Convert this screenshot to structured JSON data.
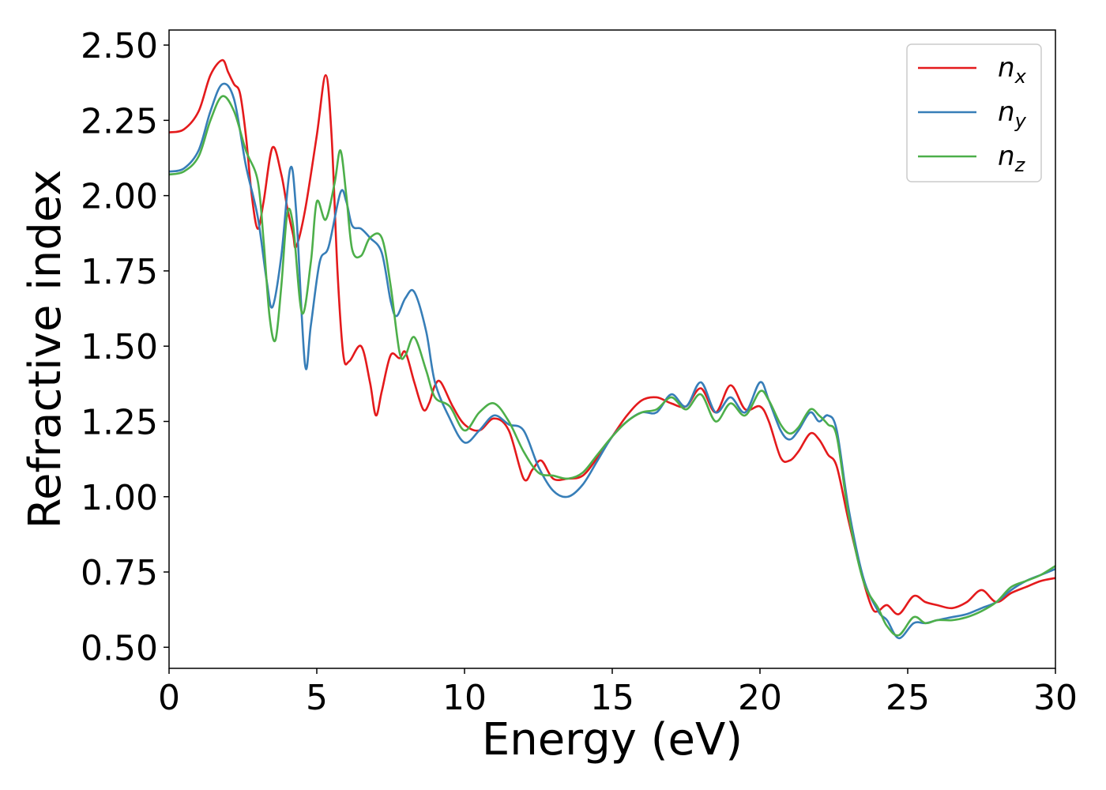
{
  "chart_data": {
    "type": "line",
    "title": "",
    "xlabel": "Energy (eV)",
    "ylabel": "Refractive index",
    "xlim": [
      0,
      30
    ],
    "ylim": [
      0.43,
      2.55
    ],
    "xticks": [
      0,
      5,
      10,
      15,
      20,
      25,
      30
    ],
    "xtick_labels": [
      "0",
      "5",
      "10",
      "15",
      "20",
      "25",
      "30"
    ],
    "yticks": [
      0.5,
      0.75,
      1.0,
      1.25,
      1.5,
      1.75,
      2.0,
      2.25,
      2.5
    ],
    "ytick_labels": [
      "0.50",
      "0.75",
      "1.00",
      "1.25",
      "1.50",
      "1.75",
      "2.00",
      "2.25",
      "2.50"
    ],
    "grid": false,
    "legend_position": "top-right",
    "series": [
      {
        "name": "n_x",
        "label_base": "n",
        "label_sub": "x",
        "color": "#e41a1c",
        "points": [
          [
            0,
            2.21
          ],
          [
            0.5,
            2.22
          ],
          [
            1.0,
            2.28
          ],
          [
            1.4,
            2.4
          ],
          [
            1.8,
            2.45
          ],
          [
            2.0,
            2.41
          ],
          [
            2.2,
            2.37
          ],
          [
            2.4,
            2.34
          ],
          [
            2.6,
            2.2
          ],
          [
            2.8,
            2.0
          ],
          [
            3.0,
            1.89
          ],
          [
            3.2,
            1.98
          ],
          [
            3.5,
            2.16
          ],
          [
            3.8,
            2.07
          ],
          [
            4.0,
            1.96
          ],
          [
            4.2,
            1.87
          ],
          [
            4.3,
            1.83
          ],
          [
            4.6,
            1.95
          ],
          [
            5.0,
            2.2
          ],
          [
            5.3,
            2.4
          ],
          [
            5.5,
            2.2
          ],
          [
            5.7,
            1.75
          ],
          [
            5.9,
            1.47
          ],
          [
            6.1,
            1.45
          ],
          [
            6.5,
            1.5
          ],
          [
            6.8,
            1.38
          ],
          [
            7.0,
            1.27
          ],
          [
            7.2,
            1.35
          ],
          [
            7.5,
            1.47
          ],
          [
            7.8,
            1.46
          ],
          [
            8.0,
            1.48
          ],
          [
            8.3,
            1.38
          ],
          [
            8.6,
            1.29
          ],
          [
            8.8,
            1.31
          ],
          [
            9.0,
            1.37
          ],
          [
            9.2,
            1.38
          ],
          [
            9.6,
            1.3
          ],
          [
            10.0,
            1.24
          ],
          [
            10.5,
            1.22
          ],
          [
            11.0,
            1.26
          ],
          [
            11.5,
            1.22
          ],
          [
            12.0,
            1.06
          ],
          [
            12.3,
            1.09
          ],
          [
            12.6,
            1.12
          ],
          [
            13.0,
            1.06
          ],
          [
            13.5,
            1.06
          ],
          [
            14.0,
            1.07
          ],
          [
            14.5,
            1.13
          ],
          [
            15.0,
            1.2
          ],
          [
            15.5,
            1.27
          ],
          [
            16.0,
            1.32
          ],
          [
            16.5,
            1.33
          ],
          [
            17.0,
            1.31
          ],
          [
            17.5,
            1.3
          ],
          [
            18.0,
            1.36
          ],
          [
            18.5,
            1.28
          ],
          [
            19.0,
            1.37
          ],
          [
            19.5,
            1.29
          ],
          [
            20.0,
            1.3
          ],
          [
            20.3,
            1.25
          ],
          [
            20.7,
            1.13
          ],
          [
            21.0,
            1.12
          ],
          [
            21.3,
            1.15
          ],
          [
            21.7,
            1.21
          ],
          [
            22.0,
            1.19
          ],
          [
            22.3,
            1.14
          ],
          [
            22.6,
            1.1
          ],
          [
            23.0,
            0.92
          ],
          [
            23.5,
            0.72
          ],
          [
            23.8,
            0.63
          ],
          [
            24.0,
            0.62
          ],
          [
            24.3,
            0.64
          ],
          [
            24.7,
            0.61
          ],
          [
            25.2,
            0.67
          ],
          [
            25.6,
            0.65
          ],
          [
            26.0,
            0.64
          ],
          [
            26.5,
            0.63
          ],
          [
            27.0,
            0.65
          ],
          [
            27.5,
            0.69
          ],
          [
            28.0,
            0.65
          ],
          [
            28.5,
            0.68
          ],
          [
            29.0,
            0.7
          ],
          [
            29.5,
            0.72
          ],
          [
            30.0,
            0.73
          ]
        ]
      },
      {
        "name": "n_y",
        "label_base": "n",
        "label_sub": "y",
        "color": "#377eb8",
        "points": [
          [
            0,
            2.08
          ],
          [
            0.5,
            2.09
          ],
          [
            1.0,
            2.15
          ],
          [
            1.4,
            2.28
          ],
          [
            1.8,
            2.37
          ],
          [
            2.2,
            2.32
          ],
          [
            2.6,
            2.1
          ],
          [
            3.0,
            1.93
          ],
          [
            3.3,
            1.72
          ],
          [
            3.5,
            1.63
          ],
          [
            3.8,
            1.8
          ],
          [
            4.1,
            2.09
          ],
          [
            4.3,
            1.95
          ],
          [
            4.6,
            1.44
          ],
          [
            4.8,
            1.57
          ],
          [
            5.1,
            1.78
          ],
          [
            5.4,
            1.83
          ],
          [
            5.8,
            2.01
          ],
          [
            6.0,
            1.98
          ],
          [
            6.2,
            1.9
          ],
          [
            6.5,
            1.89
          ],
          [
            6.8,
            1.86
          ],
          [
            7.2,
            1.81
          ],
          [
            7.5,
            1.65
          ],
          [
            7.7,
            1.6
          ],
          [
            8.0,
            1.66
          ],
          [
            8.3,
            1.68
          ],
          [
            8.7,
            1.55
          ],
          [
            9.0,
            1.38
          ],
          [
            9.5,
            1.26
          ],
          [
            10.0,
            1.18
          ],
          [
            10.5,
            1.22
          ],
          [
            11.0,
            1.27
          ],
          [
            11.5,
            1.24
          ],
          [
            12.0,
            1.22
          ],
          [
            12.5,
            1.1
          ],
          [
            13.0,
            1.02
          ],
          [
            13.5,
            1.0
          ],
          [
            14.0,
            1.04
          ],
          [
            14.5,
            1.12
          ],
          [
            15.0,
            1.2
          ],
          [
            15.5,
            1.25
          ],
          [
            16.0,
            1.28
          ],
          [
            16.5,
            1.28
          ],
          [
            17.0,
            1.34
          ],
          [
            17.5,
            1.3
          ],
          [
            18.0,
            1.38
          ],
          [
            18.5,
            1.28
          ],
          [
            19.0,
            1.33
          ],
          [
            19.5,
            1.28
          ],
          [
            20.0,
            1.38
          ],
          [
            20.3,
            1.32
          ],
          [
            20.7,
            1.22
          ],
          [
            21.0,
            1.19
          ],
          [
            21.3,
            1.22
          ],
          [
            21.7,
            1.28
          ],
          [
            22.0,
            1.25
          ],
          [
            22.3,
            1.27
          ],
          [
            22.6,
            1.22
          ],
          [
            23.0,
            0.96
          ],
          [
            23.5,
            0.73
          ],
          [
            24.0,
            0.62
          ],
          [
            24.3,
            0.59
          ],
          [
            24.7,
            0.53
          ],
          [
            25.2,
            0.58
          ],
          [
            25.6,
            0.58
          ],
          [
            26.0,
            0.59
          ],
          [
            26.5,
            0.6
          ],
          [
            27.0,
            0.61
          ],
          [
            27.5,
            0.63
          ],
          [
            28.0,
            0.65
          ],
          [
            28.5,
            0.69
          ],
          [
            29.0,
            0.72
          ],
          [
            29.5,
            0.74
          ],
          [
            30.0,
            0.76
          ]
        ]
      },
      {
        "name": "n_z",
        "label_base": "n",
        "label_sub": "z",
        "color": "#4daf4a",
        "points": [
          [
            0,
            2.07
          ],
          [
            0.5,
            2.08
          ],
          [
            1.0,
            2.13
          ],
          [
            1.4,
            2.25
          ],
          [
            1.8,
            2.33
          ],
          [
            2.2,
            2.28
          ],
          [
            2.6,
            2.15
          ],
          [
            3.0,
            2.05
          ],
          [
            3.2,
            1.85
          ],
          [
            3.4,
            1.6
          ],
          [
            3.6,
            1.52
          ],
          [
            3.8,
            1.7
          ],
          [
            4.0,
            1.94
          ],
          [
            4.2,
            1.9
          ],
          [
            4.5,
            1.61
          ],
          [
            4.8,
            1.78
          ],
          [
            5.0,
            1.98
          ],
          [
            5.3,
            1.92
          ],
          [
            5.6,
            2.04
          ],
          [
            5.8,
            2.15
          ],
          [
            6.0,
            2.0
          ],
          [
            6.2,
            1.82
          ],
          [
            6.5,
            1.8
          ],
          [
            6.8,
            1.86
          ],
          [
            7.2,
            1.86
          ],
          [
            7.5,
            1.7
          ],
          [
            7.8,
            1.48
          ],
          [
            8.0,
            1.47
          ],
          [
            8.3,
            1.53
          ],
          [
            8.7,
            1.42
          ],
          [
            9.0,
            1.33
          ],
          [
            9.5,
            1.3
          ],
          [
            10.0,
            1.22
          ],
          [
            10.5,
            1.28
          ],
          [
            11.0,
            1.31
          ],
          [
            11.5,
            1.25
          ],
          [
            12.0,
            1.15
          ],
          [
            12.5,
            1.08
          ],
          [
            13.0,
            1.07
          ],
          [
            13.5,
            1.06
          ],
          [
            14.0,
            1.08
          ],
          [
            14.5,
            1.14
          ],
          [
            15.0,
            1.2
          ],
          [
            15.5,
            1.25
          ],
          [
            16.0,
            1.28
          ],
          [
            16.5,
            1.29
          ],
          [
            17.0,
            1.33
          ],
          [
            17.5,
            1.29
          ],
          [
            18.0,
            1.34
          ],
          [
            18.5,
            1.25
          ],
          [
            19.0,
            1.31
          ],
          [
            19.5,
            1.27
          ],
          [
            20.0,
            1.35
          ],
          [
            20.3,
            1.32
          ],
          [
            20.7,
            1.24
          ],
          [
            21.0,
            1.21
          ],
          [
            21.3,
            1.23
          ],
          [
            21.7,
            1.29
          ],
          [
            22.0,
            1.27
          ],
          [
            22.3,
            1.24
          ],
          [
            22.6,
            1.2
          ],
          [
            23.0,
            0.94
          ],
          [
            23.5,
            0.72
          ],
          [
            24.0,
            0.63
          ],
          [
            24.3,
            0.57
          ],
          [
            24.7,
            0.54
          ],
          [
            25.2,
            0.6
          ],
          [
            25.6,
            0.58
          ],
          [
            26.0,
            0.59
          ],
          [
            26.5,
            0.59
          ],
          [
            27.0,
            0.6
          ],
          [
            27.5,
            0.62
          ],
          [
            28.0,
            0.65
          ],
          [
            28.5,
            0.7
          ],
          [
            29.0,
            0.72
          ],
          [
            29.5,
            0.74
          ],
          [
            30.0,
            0.77
          ]
        ]
      }
    ]
  }
}
